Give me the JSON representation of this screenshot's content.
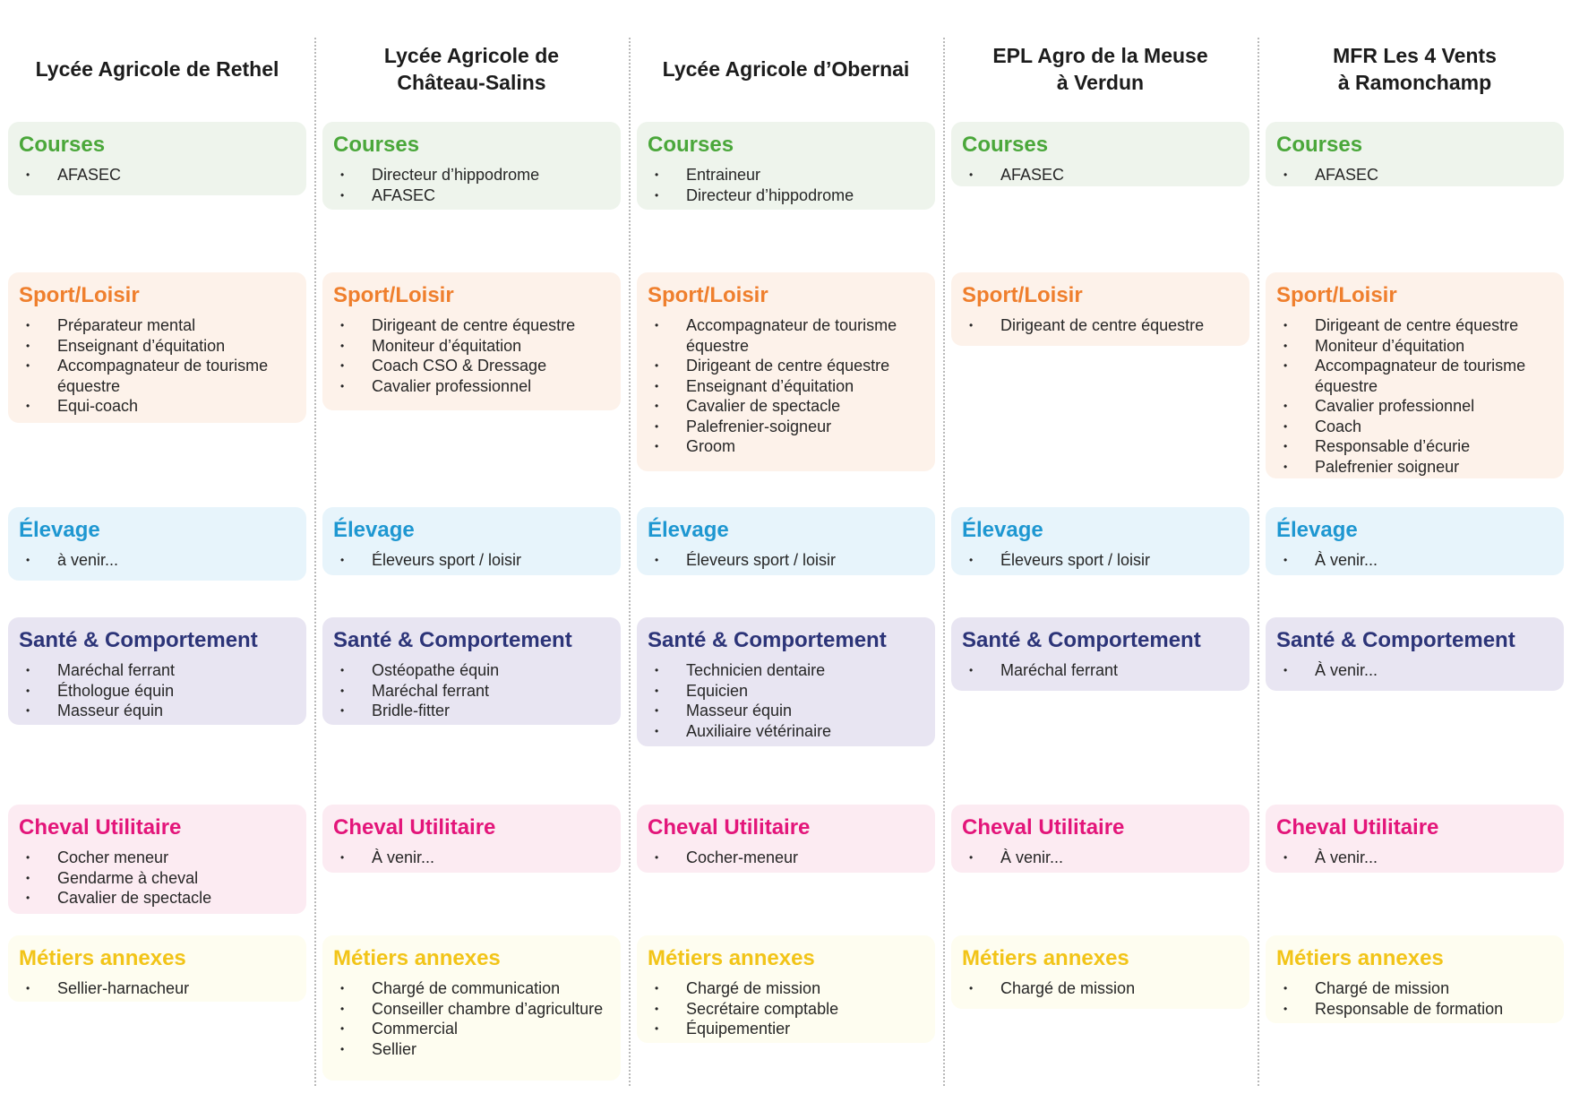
{
  "colors": {
    "courses": "#4aa73a",
    "sport": "#ef7f2d",
    "elevage": "#1e97d1",
    "sante": "#2c3478",
    "cheval": "#e3157a",
    "metiers": "#f2c418",
    "divider": "#b9b9b9"
  },
  "columns": [
    {
      "title": "Lycée Agricole de Rethel",
      "courses": {
        "label": "Courses",
        "items": [
          "AFASEC"
        ]
      },
      "sport": {
        "label": "Sport/Loisir",
        "items": [
          "Préparateur mental",
          "Enseignant d’équitation",
          "Accompagnateur de tourisme équestre",
          "Equi-coach"
        ]
      },
      "elevage": {
        "label": "Élevage",
        "items": [
          "à venir..."
        ]
      },
      "sante": {
        "label": "Santé & Comportement",
        "items": [
          "Maréchal ferrant",
          "Éthologue équin",
          "Masseur équin"
        ]
      },
      "cheval": {
        "label": "Cheval Utilitaire",
        "items": [
          "Cocher meneur",
          "Gendarme à cheval",
          "Cavalier de spectacle"
        ]
      },
      "metiers": {
        "label": "Métiers annexes",
        "items": [
          "Sellier-harnacheur"
        ]
      }
    },
    {
      "title": "Lycée Agricole de\nChâteau-Salins",
      "courses": {
        "label": "Courses",
        "items": [
          "Directeur d’hippodrome",
          "AFASEC"
        ]
      },
      "sport": {
        "label": "Sport/Loisir",
        "items": [
          "Dirigeant de centre équestre",
          "Moniteur d’équitation",
          "Coach CSO & Dressage",
          "Cavalier professionnel"
        ]
      },
      "elevage": {
        "label": "Élevage",
        "items": [
          "Éleveurs sport / loisir"
        ]
      },
      "sante": {
        "label": "Santé & Comportement",
        "items": [
          "Ostéopathe équin",
          "Maréchal ferrant",
          "Bridle-fitter"
        ]
      },
      "cheval": {
        "label": "Cheval Utilitaire",
        "items": [
          "À venir..."
        ]
      },
      "metiers": {
        "label": "Métiers annexes",
        "items": [
          "Chargé de communication",
          "Conseiller chambre d’agriculture",
          "Commercial",
          "Sellier"
        ]
      }
    },
    {
      "title": "Lycée Agricole d’Obernai",
      "courses": {
        "label": "Courses",
        "items": [
          "Entraineur",
          "Directeur d’hippodrome"
        ]
      },
      "sport": {
        "label": "Sport/Loisir",
        "items": [
          "Accompagnateur de tourisme équestre",
          "Dirigeant de centre équestre",
          "Enseignant d’équitation",
          "Cavalier de spectacle",
          "Palefrenier-soigneur",
          "Groom"
        ]
      },
      "elevage": {
        "label": "Élevage",
        "items": [
          "Éleveurs sport / loisir"
        ]
      },
      "sante": {
        "label": "Santé & Comportement",
        "items": [
          "Technicien dentaire",
          "Equicien",
          "Masseur équin",
          "Auxiliaire vétérinaire"
        ]
      },
      "cheval": {
        "label": "Cheval Utilitaire",
        "items": [
          "Cocher-meneur"
        ]
      },
      "metiers": {
        "label": "Métiers annexes",
        "items": [
          "Chargé de mission",
          "Secrétaire comptable",
          "Équipementier"
        ]
      }
    },
    {
      "title": "EPL Agro de la Meuse\nà Verdun",
      "courses": {
        "label": "Courses",
        "items": [
          "AFASEC"
        ]
      },
      "sport": {
        "label": "Sport/Loisir",
        "items": [
          "Dirigeant de centre équestre"
        ]
      },
      "elevage": {
        "label": "Élevage",
        "items": [
          "Éleveurs sport / loisir"
        ]
      },
      "sante": {
        "label": "Santé & Comportement",
        "items": [
          "Maréchal ferrant"
        ]
      },
      "cheval": {
        "label": "Cheval Utilitaire",
        "items": [
          "À venir..."
        ]
      },
      "metiers": {
        "label": "Métiers annexes",
        "items": [
          "Chargé de mission"
        ]
      }
    },
    {
      "title": "MFR Les 4 Vents\nà Ramonchamp",
      "courses": {
        "label": "Courses",
        "items": [
          "AFASEC"
        ]
      },
      "sport": {
        "label": "Sport/Loisir",
        "items": [
          "Dirigeant de centre équestre",
          "Moniteur d’équitation",
          "Accompagnateur de tourisme équestre",
          "Cavalier professionnel",
          "Coach",
          "Responsable d’écurie",
          "Palefrenier soigneur"
        ]
      },
      "elevage": {
        "label": "Élevage",
        "items": [
          "À venir..."
        ]
      },
      "sante": {
        "label": "Santé & Comportement",
        "items": [
          "À venir..."
        ]
      },
      "cheval": {
        "label": "Cheval Utilitaire",
        "items": [
          "À venir..."
        ]
      },
      "metiers": {
        "label": "Métiers annexes",
        "items": [
          "Chargé de mission",
          "Responsable de formation"
        ]
      }
    }
  ]
}
